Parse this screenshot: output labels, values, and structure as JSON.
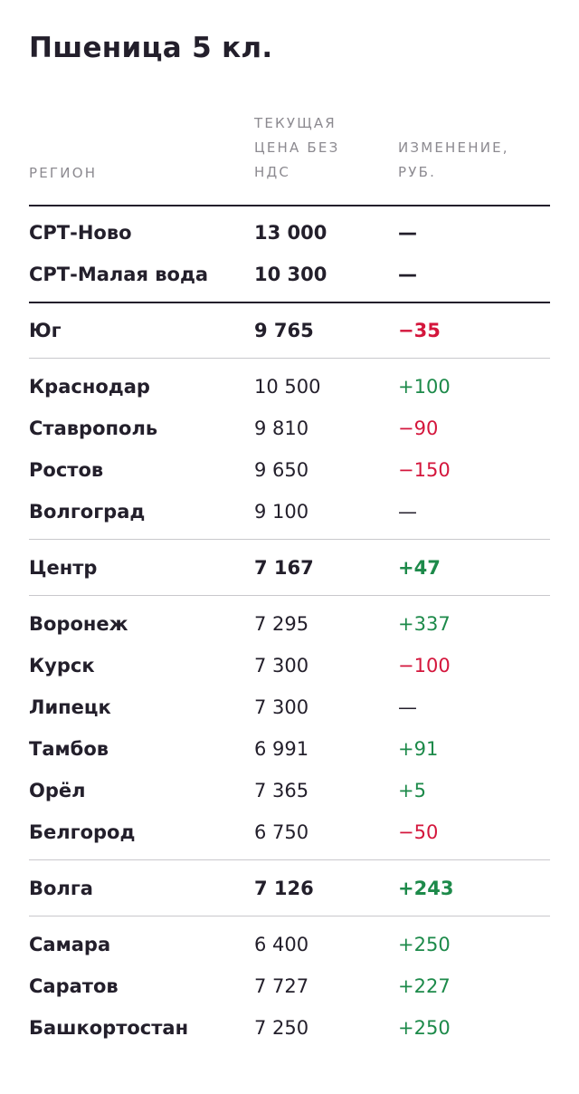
{
  "title": "Пшеница 5 кл.",
  "columns": {
    "region": "РЕГИОН",
    "price": "ТЕКУЩАЯ ЦЕНА БЕЗ НДС",
    "change": "ИЗМЕНЕНИЕ, РУБ."
  },
  "colors": {
    "negative": "#d4163c",
    "positive": "#1d8a4a",
    "text": "#231f2b",
    "header": "#8c8a90"
  },
  "groups": [
    {
      "rows": [
        {
          "region": "СРТ-Ново",
          "price": "13 000",
          "change": "—",
          "trend": "neutral",
          "summary": true
        },
        {
          "region": "СРТ-Малая вода",
          "price": "10 300",
          "change": "—",
          "trend": "neutral",
          "summary": true
        }
      ]
    },
    {
      "rows": [
        {
          "region": "Юг",
          "price": "9 765",
          "change": "−35",
          "trend": "negative",
          "summary": true
        }
      ]
    },
    {
      "rows": [
        {
          "region": "Краснодар",
          "price": "10 500",
          "change": "+100",
          "trend": "positive"
        },
        {
          "region": "Ставрополь",
          "price": "9 810",
          "change": "−90",
          "trend": "negative"
        },
        {
          "region": "Ростов",
          "price": "9 650",
          "change": "−150",
          "trend": "negative"
        },
        {
          "region": "Волгоград",
          "price": "9 100",
          "change": "—",
          "trend": "neutral"
        }
      ]
    },
    {
      "rows": [
        {
          "region": "Центр",
          "price": "7 167",
          "change": "+47",
          "trend": "positive",
          "summary": true
        }
      ]
    },
    {
      "rows": [
        {
          "region": "Воронеж",
          "price": "7 295",
          "change": "+337",
          "trend": "positive"
        },
        {
          "region": "Курск",
          "price": "7 300",
          "change": "−100",
          "trend": "negative"
        },
        {
          "region": "Липецк",
          "price": "7 300",
          "change": "—",
          "trend": "neutral"
        },
        {
          "region": "Тамбов",
          "price": "6 991",
          "change": "+91",
          "trend": "positive"
        },
        {
          "region": "Орёл",
          "price": "7 365",
          "change": "+5",
          "trend": "positive"
        },
        {
          "region": "Белгород",
          "price": "6 750",
          "change": "−50",
          "trend": "negative"
        }
      ]
    },
    {
      "rows": [
        {
          "region": "Волга",
          "price": "7 126",
          "change": "+243",
          "trend": "positive",
          "summary": true
        }
      ]
    },
    {
      "rows": [
        {
          "region": "Самара",
          "price": "6 400",
          "change": "+250",
          "trend": "positive"
        },
        {
          "region": "Саратов",
          "price": "7 727",
          "change": "+227",
          "trend": "positive"
        },
        {
          "region": "Башкортостан",
          "price": "7 250",
          "change": "+250",
          "trend": "positive"
        }
      ]
    }
  ]
}
